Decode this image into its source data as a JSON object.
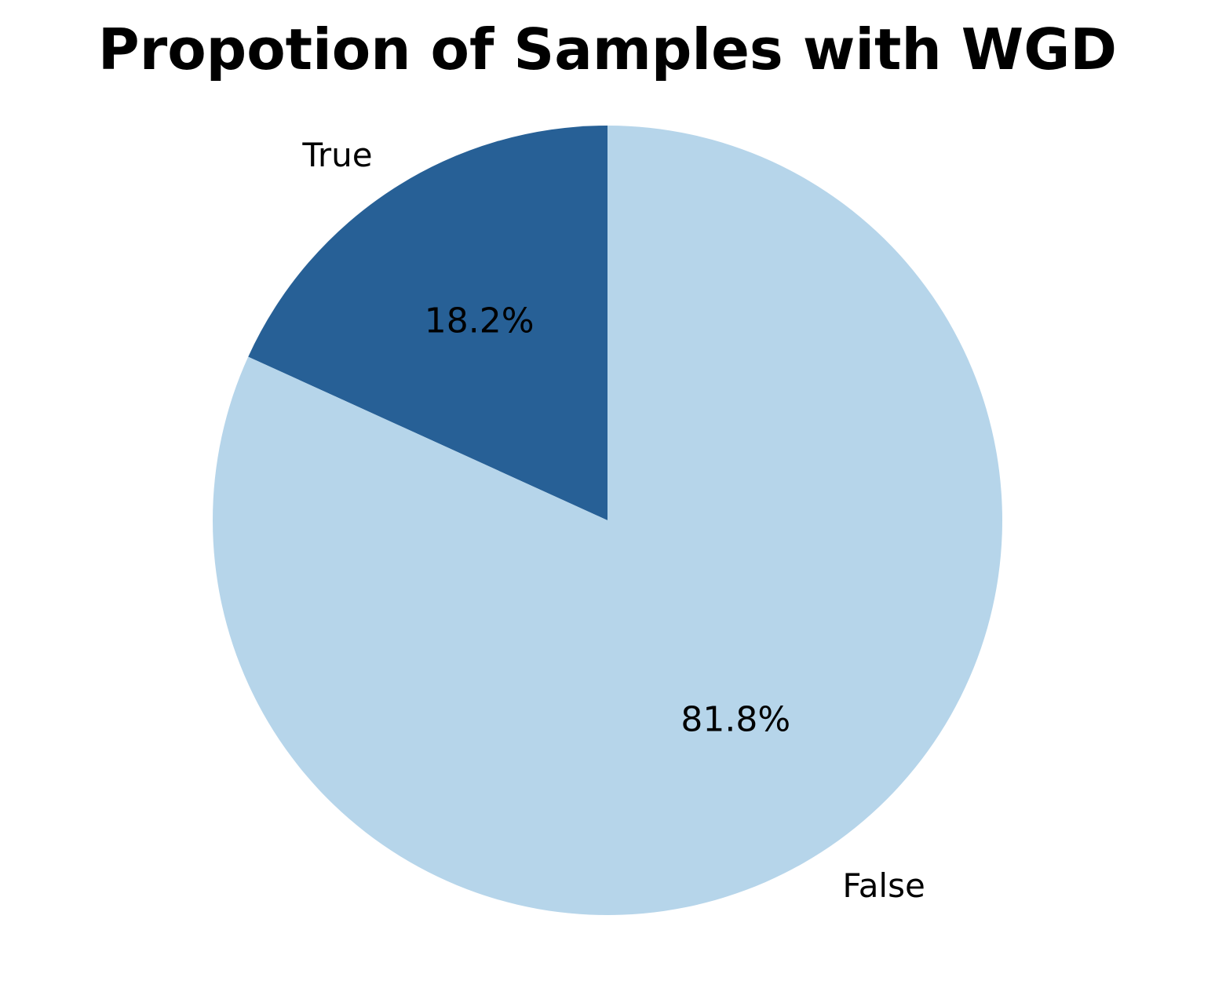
{
  "chart_data": {
    "type": "pie",
    "title": "Propotion of Samples with WGD",
    "categories": [
      "True",
      "False"
    ],
    "values": [
      18.2,
      81.8
    ],
    "value_labels": [
      "18.2%",
      "81.8%"
    ],
    "colors": [
      "#276096",
      "#b6d5ea"
    ],
    "start_angle_deg": 90,
    "direction": "counterclockwise"
  }
}
